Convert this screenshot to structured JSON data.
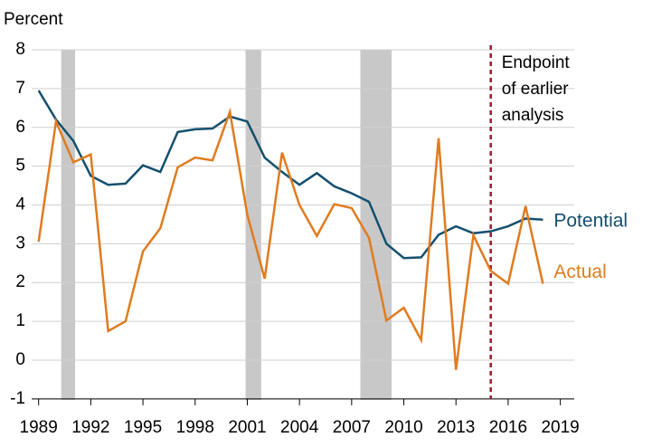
{
  "chart_data": {
    "type": "line",
    "y_axis_label": "Percent",
    "x": [
      1989,
      1990,
      1991,
      1992,
      1993,
      1994,
      1995,
      1996,
      1997,
      1998,
      1999,
      2000,
      2001,
      2002,
      2003,
      2004,
      2005,
      2006,
      2007,
      2008,
      2009,
      2010,
      2011,
      2012,
      2013,
      2014,
      2015,
      2016,
      2017,
      2018
    ],
    "series": [
      {
        "name": "Potential",
        "color": "#14506e",
        "values": [
          6.95,
          6.2,
          5.65,
          4.75,
          4.52,
          4.55,
          5.02,
          4.85,
          5.88,
          5.95,
          5.97,
          6.28,
          6.15,
          5.22,
          4.85,
          4.52,
          4.82,
          4.48,
          4.3,
          4.08,
          3.0,
          2.63,
          2.65,
          3.23,
          3.45,
          3.27,
          3.32,
          3.45,
          3.65,
          3.62
        ]
      },
      {
        "name": "Actual",
        "color": "#e07b1f",
        "values": [
          3.05,
          6.15,
          5.1,
          5.3,
          0.75,
          1.0,
          2.8,
          3.4,
          4.97,
          5.22,
          5.15,
          6.4,
          3.75,
          2.1,
          5.35,
          4.0,
          3.2,
          4.02,
          3.92,
          3.15,
          1.02,
          1.35,
          0.52,
          5.72,
          -0.25,
          3.22,
          2.3,
          1.97,
          3.97,
          1.97
        ]
      }
    ],
    "shaded_ranges": [
      [
        1990.3,
        1991.1
      ],
      [
        2000.9,
        2001.8
      ],
      [
        2007.5,
        2009.3
      ]
    ],
    "shade_color": "#c8c8c8",
    "vertical_line": {
      "x": 2015,
      "color": "#9b1c31",
      "label_lines": [
        "Endpoint",
        "of earlier",
        "analysis"
      ]
    },
    "xlim": [
      1988.6,
      2019.8
    ],
    "xticks": [
      1989,
      1992,
      1995,
      1998,
      2001,
      2004,
      2007,
      2010,
      2013,
      2016,
      2019
    ],
    "ylim": [
      -1.4,
      8
    ],
    "yticks": [
      -1,
      0,
      1,
      2,
      3,
      4,
      5,
      6,
      7,
      8
    ],
    "grid": true
  }
}
